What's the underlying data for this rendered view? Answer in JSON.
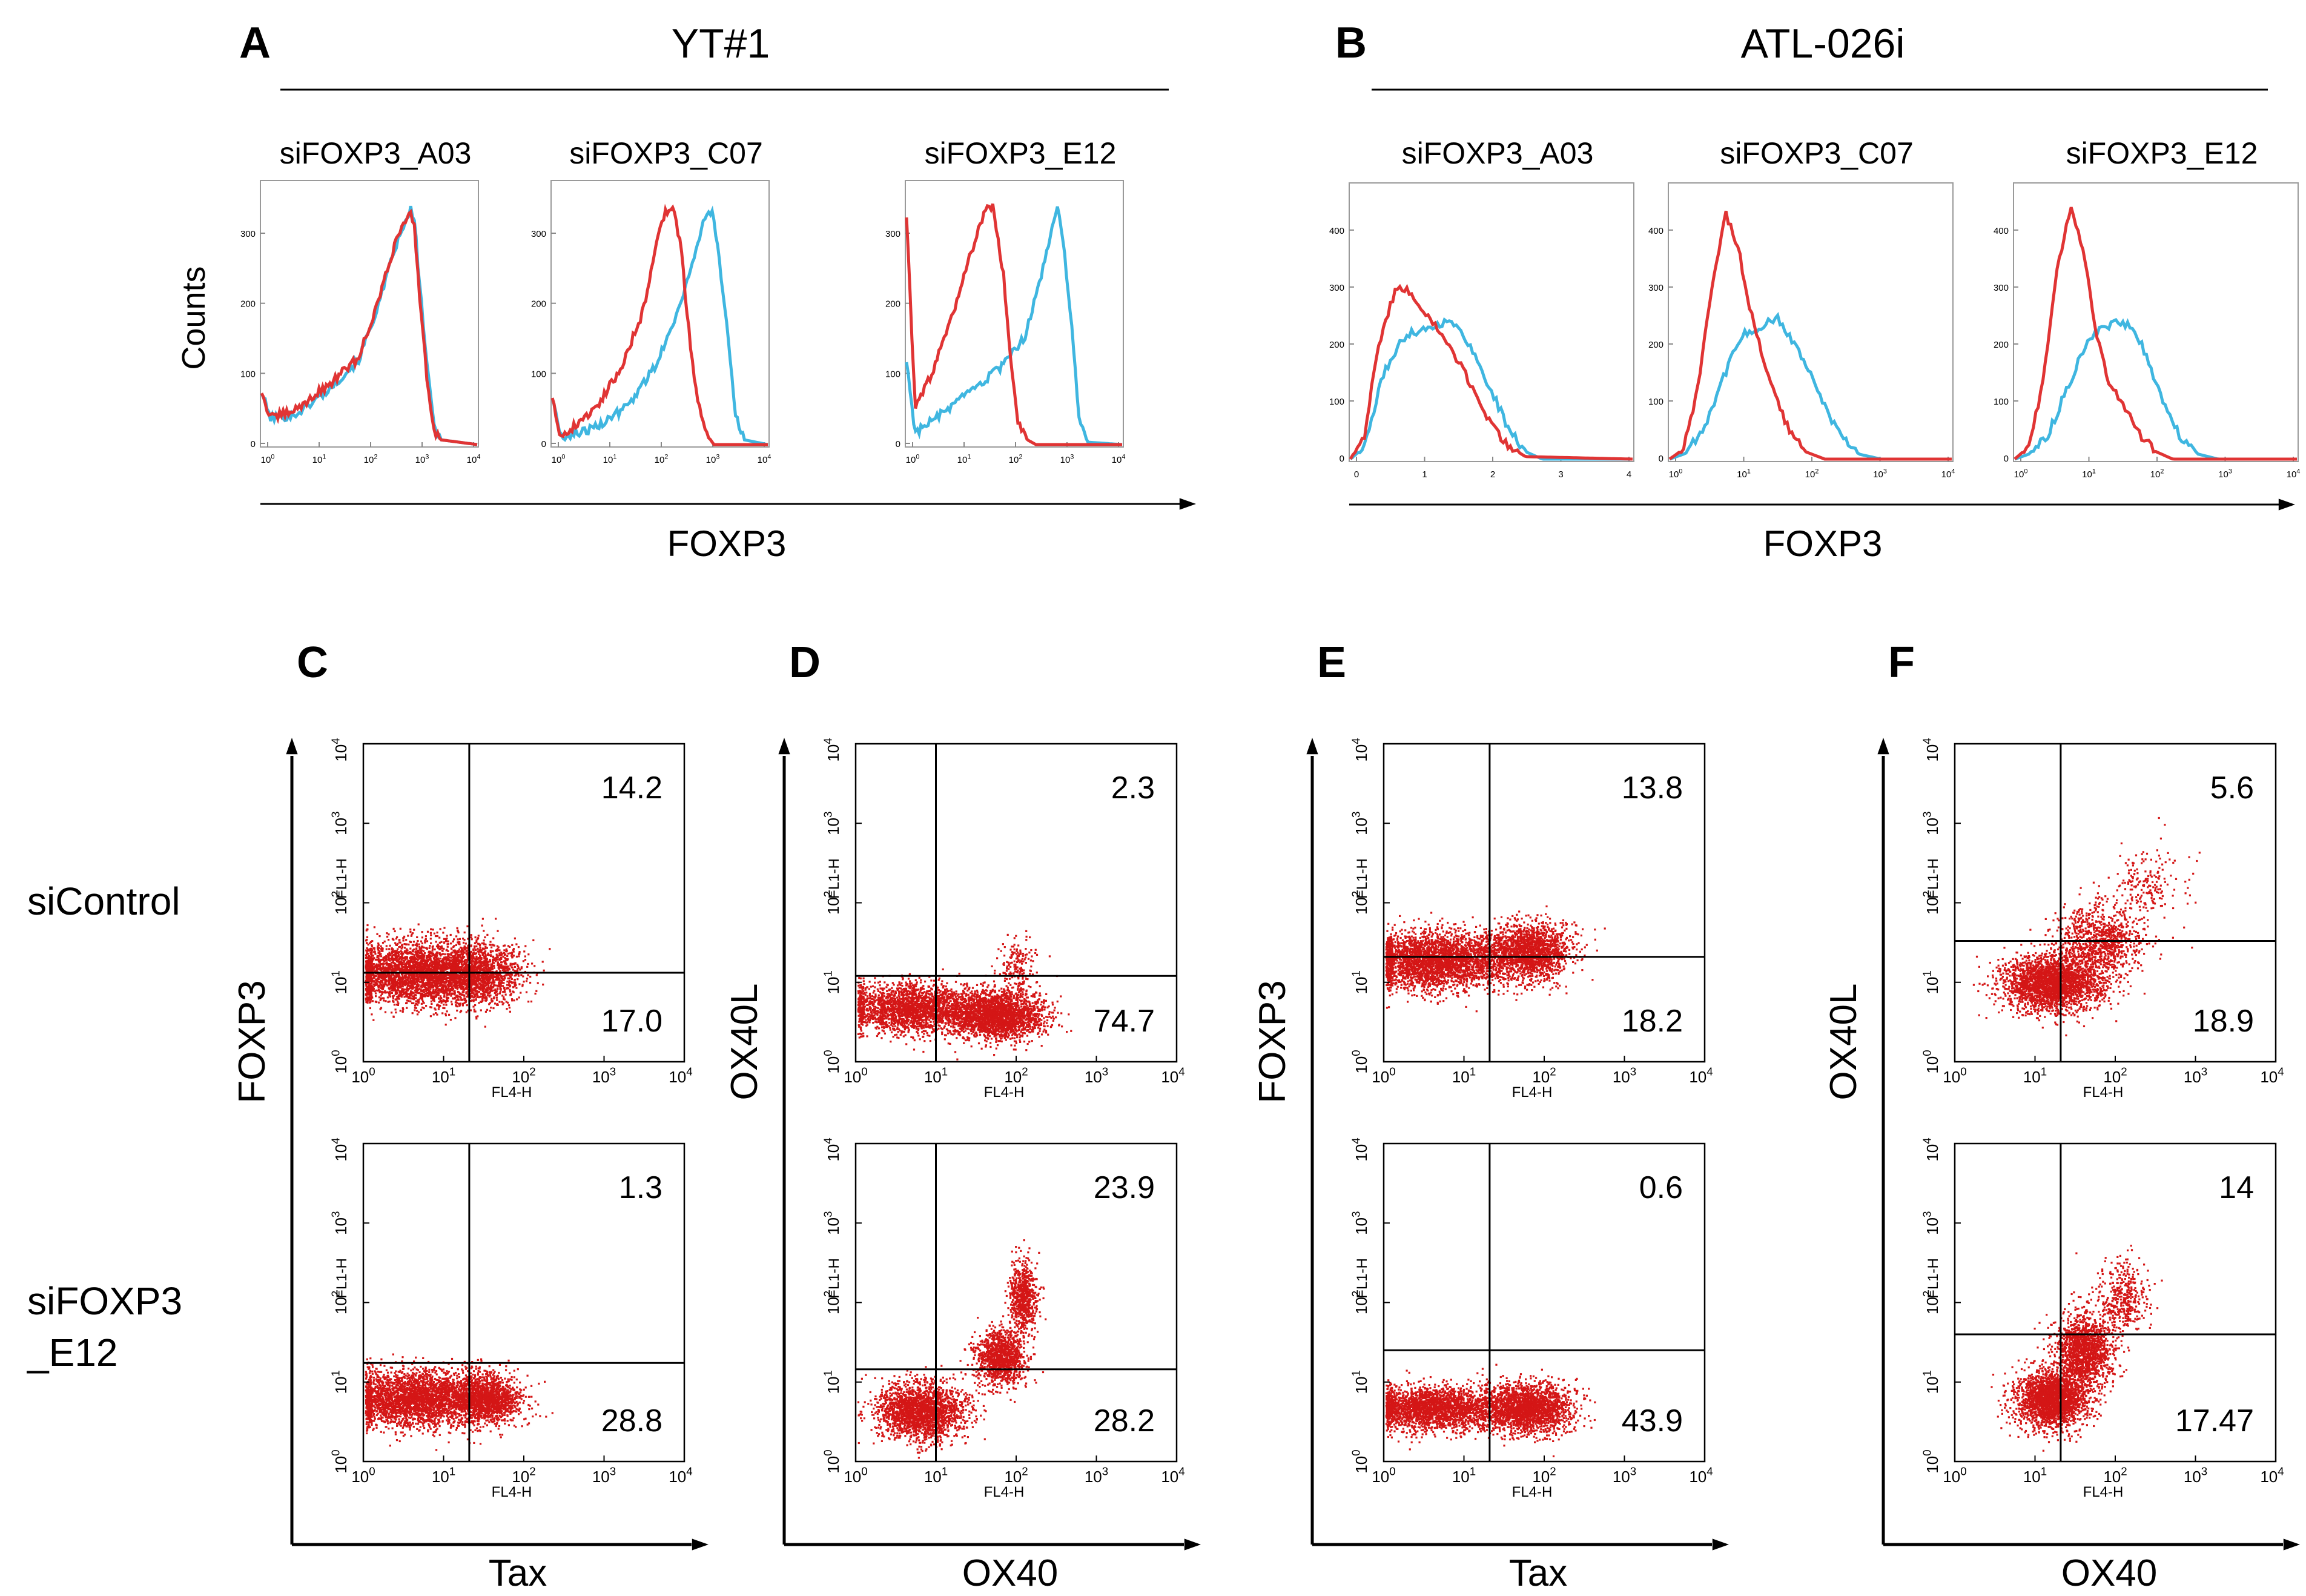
{
  "colors": {
    "control_curve": "#3fb6e0",
    "knockdown_curve": "#e03434",
    "dots": "#d41616"
  },
  "histograms": [
    {
      "letter": "A",
      "title": "YT#1",
      "x_label": "FOXP3",
      "y_label": "Counts",
      "subplots": [
        {
          "title": "siFOXP3_A03",
          "y_ticks": [
            "0",
            "100",
            "200",
            "300"
          ],
          "x_ticks": [
            "10",
            "10",
            "10",
            "10",
            "10"
          ],
          "x_exps": [
            "0",
            "1",
            "2",
            "3",
            "4"
          ]
        },
        {
          "title": "siFOXP3_C07",
          "y_ticks": [
            "0",
            "100",
            "200",
            "300"
          ],
          "x_ticks": [
            "10",
            "10",
            "10",
            "10",
            "10"
          ],
          "x_exps": [
            "0",
            "1",
            "2",
            "3",
            "4"
          ]
        },
        {
          "title": "siFOXP3_E12",
          "y_ticks": [
            "0",
            "100",
            "200",
            "300"
          ],
          "x_ticks": [
            "10",
            "10",
            "10",
            "10",
            "10"
          ],
          "x_exps": [
            "0",
            "1",
            "2",
            "3",
            "4"
          ]
        }
      ]
    },
    {
      "letter": "B",
      "title": "ATL-026i",
      "x_label": "FOXP3",
      "y_label": "",
      "subplots": [
        {
          "title": "siFOXP3_A03",
          "y_ticks": [
            "0",
            "100",
            "200",
            "300",
            "400"
          ],
          "x_ticks": [
            "0",
            "1",
            "2",
            "3",
            "4"
          ],
          "x_exps": [
            "",
            "",
            "",
            "",
            ""
          ]
        },
        {
          "title": "siFOXP3_C07",
          "y_ticks": [
            "0",
            "100",
            "200",
            "300",
            "400"
          ],
          "x_ticks": [
            "10",
            "10",
            "10",
            "10",
            "10"
          ],
          "x_exps": [
            "0",
            "1",
            "2",
            "3",
            "4"
          ]
        },
        {
          "title": "siFOXP3_E12",
          "y_ticks": [
            "0",
            "100",
            "200",
            "300",
            "400"
          ],
          "x_ticks": [
            "10",
            "10",
            "10",
            "10",
            "10"
          ],
          "x_exps": [
            "0",
            "1",
            "2",
            "3",
            "4"
          ]
        }
      ]
    }
  ],
  "row_labels": [
    "siControl",
    "siFOXP3\n_E12"
  ],
  "dot_panels": [
    {
      "letter": "C",
      "y_label": "FOXP3",
      "x_label": "Tax",
      "plots": [
        {
          "upper_right": "14.2",
          "lower_right": "17.0"
        },
        {
          "upper_right": "1.3",
          "lower_right": "28.8"
        }
      ]
    },
    {
      "letter": "D",
      "y_label": "OX40L",
      "x_label": "OX40",
      "plots": [
        {
          "upper_right": "2.3",
          "lower_right": "74.7"
        },
        {
          "upper_right": "23.9",
          "lower_right": "28.2"
        }
      ]
    },
    {
      "letter": "E",
      "y_label": "FOXP3",
      "x_label": "Tax",
      "plots": [
        {
          "upper_right": "13.8",
          "lower_right": "18.2"
        },
        {
          "upper_right": "0.6",
          "lower_right": "43.9"
        }
      ]
    },
    {
      "letter": "F",
      "y_label": "OX40L",
      "x_label": "OX40",
      "plots": [
        {
          "upper_right": "5.6",
          "lower_right": "18.9"
        },
        {
          "upper_right": "14",
          "lower_right": "17.47"
        }
      ]
    }
  ],
  "dot_axis": {
    "detector_x": "FL4-H",
    "detector_y": "FL1-H",
    "tick_base": "10",
    "tick_exps": [
      "0",
      "1",
      "2",
      "3",
      "4"
    ]
  }
}
